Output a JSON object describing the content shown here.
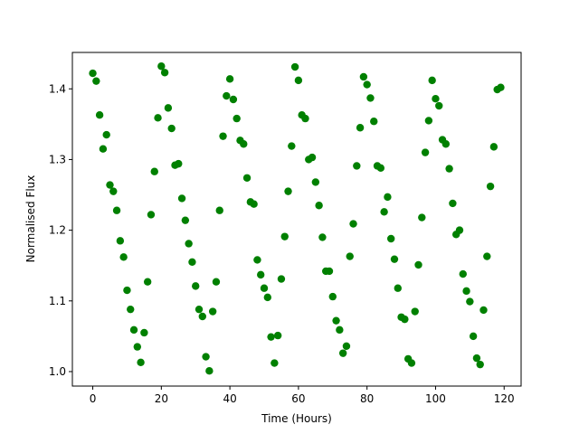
{
  "chart_data": {
    "type": "scatter",
    "x_label": "Time (Hours)",
    "y_label": "Normalised Flux",
    "color": "#008000",
    "x": [
      0,
      1,
      2,
      3,
      4,
      5,
      6,
      7,
      8,
      9,
      10,
      11,
      12,
      13,
      14,
      15,
      16,
      17,
      18,
      19,
      20,
      21,
      22,
      23,
      24,
      25,
      26,
      27,
      28,
      29,
      30,
      31,
      32,
      33,
      34,
      35,
      36,
      37,
      38,
      39,
      40,
      41,
      42,
      43,
      44,
      45,
      46,
      47,
      48,
      49,
      50,
      51,
      52,
      53,
      54,
      55,
      56,
      57,
      58,
      59,
      60,
      61,
      62,
      63,
      64,
      65,
      66,
      67,
      68,
      69,
      70,
      71,
      72,
      73,
      74,
      75,
      76,
      77,
      78,
      79,
      80,
      81,
      82,
      83,
      84,
      85,
      86,
      87,
      88,
      89,
      90,
      91,
      92,
      93,
      94,
      95,
      96,
      97,
      98,
      99,
      100,
      101,
      102,
      103,
      104,
      105,
      106,
      107,
      108,
      109,
      110,
      111,
      112,
      113,
      114,
      115,
      116,
      117,
      118,
      119
    ],
    "values": [
      1.422,
      1.411,
      1.363,
      1.315,
      1.335,
      1.264,
      1.255,
      1.228,
      1.185,
      1.162,
      1.115,
      1.088,
      1.059,
      1.035,
      1.013,
      1.055,
      1.127,
      1.222,
      1.283,
      1.359,
      1.432,
      1.423,
      1.373,
      1.344,
      1.292,
      1.294,
      1.245,
      1.214,
      1.181,
      1.155,
      1.121,
      1.088,
      1.078,
      1.021,
      1.001,
      1.085,
      1.127,
      1.228,
      1.333,
      1.39,
      1.414,
      1.385,
      1.358,
      1.327,
      1.322,
      1.274,
      1.24,
      1.237,
      1.158,
      1.137,
      1.118,
      1.105,
      1.049,
      1.012,
      1.051,
      1.131,
      1.191,
      1.255,
      1.319,
      1.431,
      1.412,
      1.363,
      1.358,
      1.3,
      1.303,
      1.268,
      1.235,
      1.19,
      1.142,
      1.142,
      1.106,
      1.072,
      1.059,
      1.026,
      1.036,
      1.163,
      1.209,
      1.291,
      1.345,
      1.417,
      1.406,
      1.387,
      1.354,
      1.291,
      1.288,
      1.226,
      1.247,
      1.188,
      1.159,
      1.118,
      1.077,
      1.074,
      1.018,
      1.012,
      1.085,
      1.151,
      1.218,
      1.31,
      1.355,
      1.412,
      1.386,
      1.376,
      1.328,
      1.322,
      1.287,
      1.238,
      1.194,
      1.2,
      1.138,
      1.114,
      1.099,
      1.05,
      1.019,
      1.01,
      1.087,
      1.163,
      1.262,
      1.318,
      1.399,
      1.402
    ],
    "xlim": [
      -5.95,
      124.95
    ],
    "xticks": [
      0,
      20,
      40,
      60,
      80,
      100,
      120
    ],
    "ylim": [
      0.9795,
      1.4515
    ],
    "yticks": [
      {
        "value": 1.0,
        "label": "1.0"
      },
      1.1,
      1.2,
      1.3,
      1.4
    ]
  }
}
